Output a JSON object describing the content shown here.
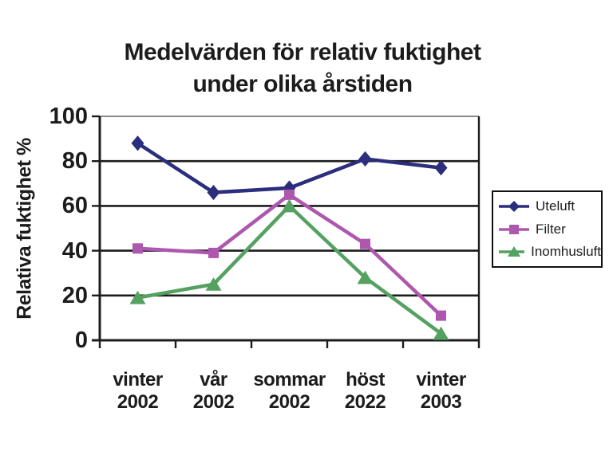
{
  "title": {
    "line1": "Medelvärden för relativ fuktighet",
    "line2": "under olika årstiden"
  },
  "chart_data": {
    "type": "line",
    "title": "Medelvärden för relativ fuktighet under olika årstiden",
    "xlabel": "",
    "ylabel": "Relativa fuktighet %",
    "ylim": [
      0,
      100
    ],
    "yticks": [
      0,
      20,
      40,
      60,
      80,
      100
    ],
    "grid": "horizontal",
    "legend_position": "right",
    "categories": [
      "vinter 2002",
      "vår 2002",
      "sommar 2002",
      "höst 2022",
      "vinter 2003"
    ],
    "series": [
      {
        "name": "Uteluft",
        "marker": "diamond",
        "color": "#2b2d7d",
        "values": [
          88,
          66,
          68,
          81,
          77
        ]
      },
      {
        "name": "Filter",
        "marker": "square",
        "color": "#ae57ae",
        "values": [
          41,
          39,
          65,
          43,
          11
        ]
      },
      {
        "name": "Inomhusluft",
        "marker": "triangle",
        "color": "#55a161",
        "values": [
          19,
          25,
          60,
          28,
          3
        ]
      }
    ],
    "colors": {
      "axis": "#1c1c1c",
      "gridline": "#1c1c1c",
      "top_border": "#8a8a8a",
      "text": "#1c1c1c"
    }
  }
}
